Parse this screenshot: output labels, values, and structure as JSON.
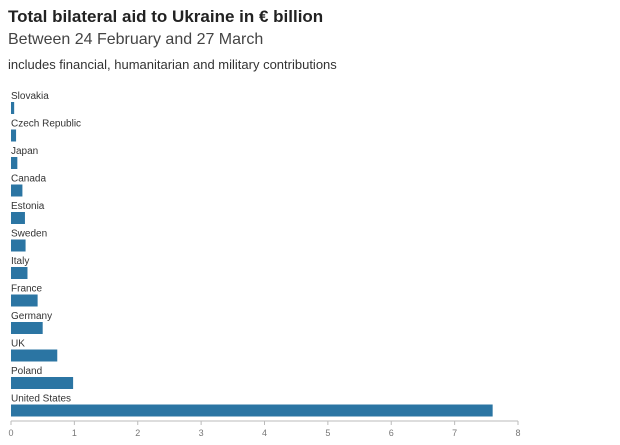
{
  "title": "Total bilateral aid to Ukraine in € billion",
  "subtitle": "Between 24 February and 27 March",
  "note": "includes financial, humanitarian and military contributions",
  "colors": {
    "bar": "#2b75a3",
    "axis": "#bbbbbb",
    "grid": "#e6e6e6"
  },
  "chart_data": {
    "type": "bar",
    "orientation": "horizontal",
    "categories": [
      "Slovakia",
      "Czech Republic",
      "Japan",
      "Canada",
      "Estonia",
      "Sweden",
      "Italy",
      "France",
      "Germany",
      "UK",
      "Poland",
      "United States"
    ],
    "values": [
      0.05,
      0.08,
      0.1,
      0.18,
      0.22,
      0.23,
      0.26,
      0.42,
      0.5,
      0.73,
      0.98,
      7.6
    ],
    "xlim": [
      0,
      8
    ],
    "xticks": [
      "0",
      "1",
      "2",
      "3",
      "4",
      "5",
      "6",
      "7",
      "8"
    ],
    "grid": false
  }
}
